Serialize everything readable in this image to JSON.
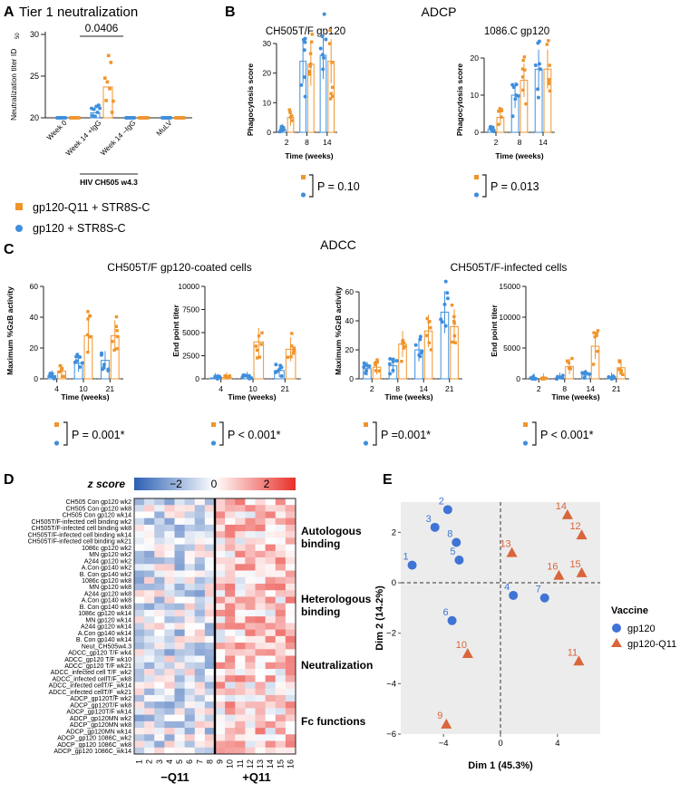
{
  "colors": {
    "orange": "#f0942c",
    "blue": "#3f8fdc",
    "red": "#e8453c",
    "white": "#ffffff",
    "darkblue": "#2b5fb3"
  },
  "panelA": {
    "letter": "A",
    "title": "Tier 1 neutralization",
    "ylabel": "Neutralization titer ID",
    "ysub": "50",
    "yticks": [
      "20",
      "25",
      "30"
    ],
    "pvalue": "0.0406",
    "xticks": [
      "Week 0",
      "Week 14 +IgG",
      "Week 14 –IgG",
      "MuLV"
    ],
    "group_label": "HIV CH505 w4.3"
  },
  "legend": {
    "q11": "gp120-Q11 + STR8S-C",
    "gp120": "gp120 + STR8S-C"
  },
  "panelB": {
    "letter": "B",
    "title": "ADCP",
    "charts": [
      {
        "title": "CH505T/F gp120",
        "ylabel": "Phagocytosis score",
        "xlabel": "Time (weeks)",
        "yticks": [
          "0",
          "10",
          "20",
          "30"
        ],
        "xticks": [
          "2",
          "8",
          "14"
        ],
        "p": "P = 0.10"
      },
      {
        "title": "1086.C  gp120",
        "ylabel": "Phagocytosis score",
        "xlabel": "Time (weeks)",
        "yticks": [
          "0",
          "10",
          "20"
        ],
        "xticks": [
          "2",
          "8",
          "14"
        ],
        "p": "P = 0.013"
      }
    ]
  },
  "panelC": {
    "letter": "C",
    "title": "ADCC",
    "sub1": "CH505T/F gp120-coated cells",
    "sub2": "CH505T/F-infected  cells",
    "charts": [
      {
        "ylabel": "Maximum %GzB activity",
        "xlabel": "Time (weeks)",
        "yticks": [
          "0",
          "20",
          "40",
          "60"
        ],
        "xticks": [
          "4",
          "10",
          "21"
        ],
        "p": "P = 0.001*"
      },
      {
        "ylabel": "End point titer",
        "xlabel": "Time (weeks)",
        "yticks": [
          "0",
          "2500",
          "5000",
          "7500",
          "10000"
        ],
        "xticks": [
          "4",
          "10",
          "21"
        ],
        "p": "P < 0.001*"
      },
      {
        "ylabel": "Maximum %GzB activity",
        "xlabel": "Time (weeks)",
        "yticks": [
          "0",
          "20",
          "40",
          "60"
        ],
        "xticks": [
          "2",
          "8",
          "14",
          "21"
        ],
        "p": "P =0.001*"
      },
      {
        "ylabel": "End point titer",
        "xlabel": "Time (weeks)",
        "yticks": [
          "0",
          "5000",
          "10000",
          "15000"
        ],
        "xticks": [
          "2",
          "8",
          "14",
          "21"
        ],
        "p": "P < 0.001*"
      }
    ]
  },
  "panelD": {
    "letter": "D",
    "zlabel": "z score",
    "zticks": [
      "−2",
      "0",
      "2"
    ],
    "rows": [
      "CH505 Con gp120 wk2",
      "CH505 Con gp120 wk8",
      "CH505 Con gp120 wk14",
      "CH505T/F-infected cell binding wk2",
      "CH505T/F-infected cell binding wk8",
      "CH505T/F-infected cell binding wk14",
      "CH505T/F-infected cell binding wk21",
      "1086c gp120 wk2",
      "MN gp120 wk2",
      "A244 gp120 wk2",
      "A.Con gp140 wk2",
      "B. Con gp140 wk2",
      "1086c gp120 wk8",
      "MN gp120 wk8",
      "A244 gp120 wk8",
      "A.Con gp140 wk8",
      "B. Con gp140 wk8",
      "1086c gp120 wk14",
      "MN gp120 wk14",
      "A244 gp120 wk14",
      "A.Con gp140 wk14",
      "B. Con gp140 wk14",
      "Neut_CH505w4.3",
      "ADCC_gp120 T/F wk4",
      "ADCC_gp120 T/F wk10",
      "ADCC_gp120 T/F wk21",
      "ADCC_infected cell T/F_wk2",
      "ADCC_infected cellT/F_wk8",
      "ADCC_infected cellT/F_wk14",
      "ADCC_infected cellT/F_wk21",
      "ADCP_gp120T/F wk2",
      "ADCP_gp120T/F wk8",
      "ADCP_gp120T/F wk14",
      "ADCP_gp120MN wk2",
      "ADCP_gp120MN wk8",
      "ADCP_gp120MN wk14",
      "ADCP_gp120 1086C_wk2",
      "ADCP_gp120 1086C_wk8",
      "ADCP_gp120 1086C_wk14"
    ],
    "cols": [
      "1",
      "2",
      "3",
      "4",
      "5",
      "6",
      "7",
      "8",
      "9",
      "10",
      "11",
      "12",
      "13",
      "14",
      "15",
      "16"
    ],
    "groups": [
      "Autologous\nbinding",
      "Heterologous\nbinding",
      "Neutralization",
      "Fc functions"
    ],
    "group_neg": "−Q11",
    "group_pos": "+Q11"
  },
  "panelE": {
    "letter": "E",
    "xlabel": "Dim 1 (45.3%)",
    "ylabel": "Dim 2 (14.2%)",
    "xticks": [
      "−4",
      "0",
      "4"
    ],
    "yticks": [
      "2",
      "0",
      "−2",
      "−4",
      "−6"
    ],
    "legend_title": "Vaccine",
    "legend": [
      "gp120",
      "gp120-Q11"
    ],
    "points_gp120": [
      {
        "id": "1",
        "x": -6.2,
        "y": 0.7
      },
      {
        "id": "2",
        "x": -3.7,
        "y": 2.9
      },
      {
        "id": "3",
        "x": -4.6,
        "y": 2.2
      },
      {
        "id": "4",
        "x": 0.9,
        "y": -0.5
      },
      {
        "id": "5",
        "x": -2.9,
        "y": 0.9
      },
      {
        "id": "6",
        "x": -3.4,
        "y": -1.5
      },
      {
        "id": "7",
        "x": 3.1,
        "y": -0.6
      },
      {
        "id": "8",
        "x": -3.1,
        "y": 1.6
      }
    ],
    "points_q11": [
      {
        "id": "9",
        "x": -3.8,
        "y": -5.6
      },
      {
        "id": "10",
        "x": -2.3,
        "y": -2.8
      },
      {
        "id": "11",
        "x": 5.5,
        "y": -3.1
      },
      {
        "id": "12",
        "x": 5.7,
        "y": 1.9
      },
      {
        "id": "13",
        "x": 0.8,
        "y": 1.2
      },
      {
        "id": "14",
        "x": 4.7,
        "y": 2.7
      },
      {
        "id": "15",
        "x": 5.7,
        "y": 0.4
      },
      {
        "id": "16",
        "x": 4.1,
        "y": 0.3
      }
    ]
  },
  "chart_data": [
    {
      "type": "scatter",
      "title": "Tier 1 neutralization",
      "ylabel": "Neutralization titer ID50",
      "ylim": [
        20,
        30
      ],
      "categories": [
        "Week 0",
        "Week 14 +IgG",
        "Week 14 –IgG",
        "MuLV"
      ],
      "series": [
        {
          "name": "gp120 + STR8S-C",
          "values": [
            20,
            20.6,
            20,
            20
          ]
        },
        {
          "name": "gp120-Q11 + STR8S-C",
          "values": [
            20,
            23.7,
            20,
            20
          ]
        }
      ]
    },
    {
      "type": "bar",
      "title": "ADCP CH505T/F gp120",
      "ylabel": "Phagocytosis score",
      "xlabel": "Time (weeks)",
      "ylim": [
        0,
        30
      ],
      "categories": [
        "2",
        "8",
        "14"
      ],
      "series": [
        {
          "name": "gp120",
          "values": [
            1,
            24,
            26
          ]
        },
        {
          "name": "gp120-Q11",
          "values": [
            5,
            23,
            24
          ]
        }
      ]
    },
    {
      "type": "bar",
      "title": "ADCP 1086.C gp120",
      "ylabel": "Phagocytosis score",
      "xlabel": "Time (weeks)",
      "ylim": [
        0,
        20
      ],
      "categories": [
        "2",
        "8",
        "14"
      ],
      "series": [
        {
          "name": "gp120",
          "values": [
            0.8,
            10,
            17
          ]
        },
        {
          "name": "gp120-Q11",
          "values": [
            4,
            14,
            17
          ]
        }
      ]
    },
    {
      "type": "bar",
      "title": "ADCC CH505T/F gp120-coated cells",
      "ylabel": "Maximum %GzB activity",
      "ylim": [
        0,
        60
      ],
      "categories": [
        "4",
        "10",
        "21"
      ],
      "series": [
        {
          "name": "gp120",
          "values": [
            2,
            10,
            12
          ]
        },
        {
          "name": "gp120-Q11",
          "values": [
            5,
            28,
            28
          ]
        }
      ]
    },
    {
      "type": "bar",
      "title": "ADCC gp120-coated end point titer",
      "ylabel": "End point titer",
      "ylim": [
        0,
        10000
      ],
      "categories": [
        "4",
        "10",
        "21"
      ],
      "series": [
        {
          "name": "gp120",
          "values": [
            100,
            200,
            900
          ]
        },
        {
          "name": "gp120-Q11",
          "values": [
            150,
            4000,
            3200
          ]
        }
      ]
    },
    {
      "type": "bar",
      "title": "ADCC CH505T/F-infected cells",
      "ylabel": "Maximum %GzB activity",
      "ylim": [
        0,
        60
      ],
      "categories": [
        "2",
        "8",
        "14",
        "21"
      ],
      "series": [
        {
          "name": "gp120",
          "values": [
            7,
            9,
            20,
            46
          ]
        },
        {
          "name": "gp120-Q11",
          "values": [
            8,
            24,
            33,
            36
          ]
        }
      ]
    },
    {
      "type": "bar",
      "title": "ADCC infected cells end point titer",
      "ylabel": "End point titer",
      "ylim": [
        0,
        15000
      ],
      "categories": [
        "2",
        "8",
        "14",
        "21"
      ],
      "series": [
        {
          "name": "gp120",
          "values": [
            100,
            200,
            600,
            200
          ]
        },
        {
          "name": "gp120-Q11",
          "values": [
            100,
            2000,
            5300,
            1800
          ]
        }
      ]
    },
    {
      "type": "heatmap",
      "title": "z score heatmap",
      "zlim": [
        -3,
        3
      ]
    },
    {
      "type": "scatter",
      "title": "PCA",
      "xlabel": "Dim 1 (45.3%)",
      "ylabel": "Dim 2 (14.2%)",
      "xlim": [
        -7,
        7
      ],
      "ylim": [
        -6,
        3.2
      ]
    }
  ]
}
